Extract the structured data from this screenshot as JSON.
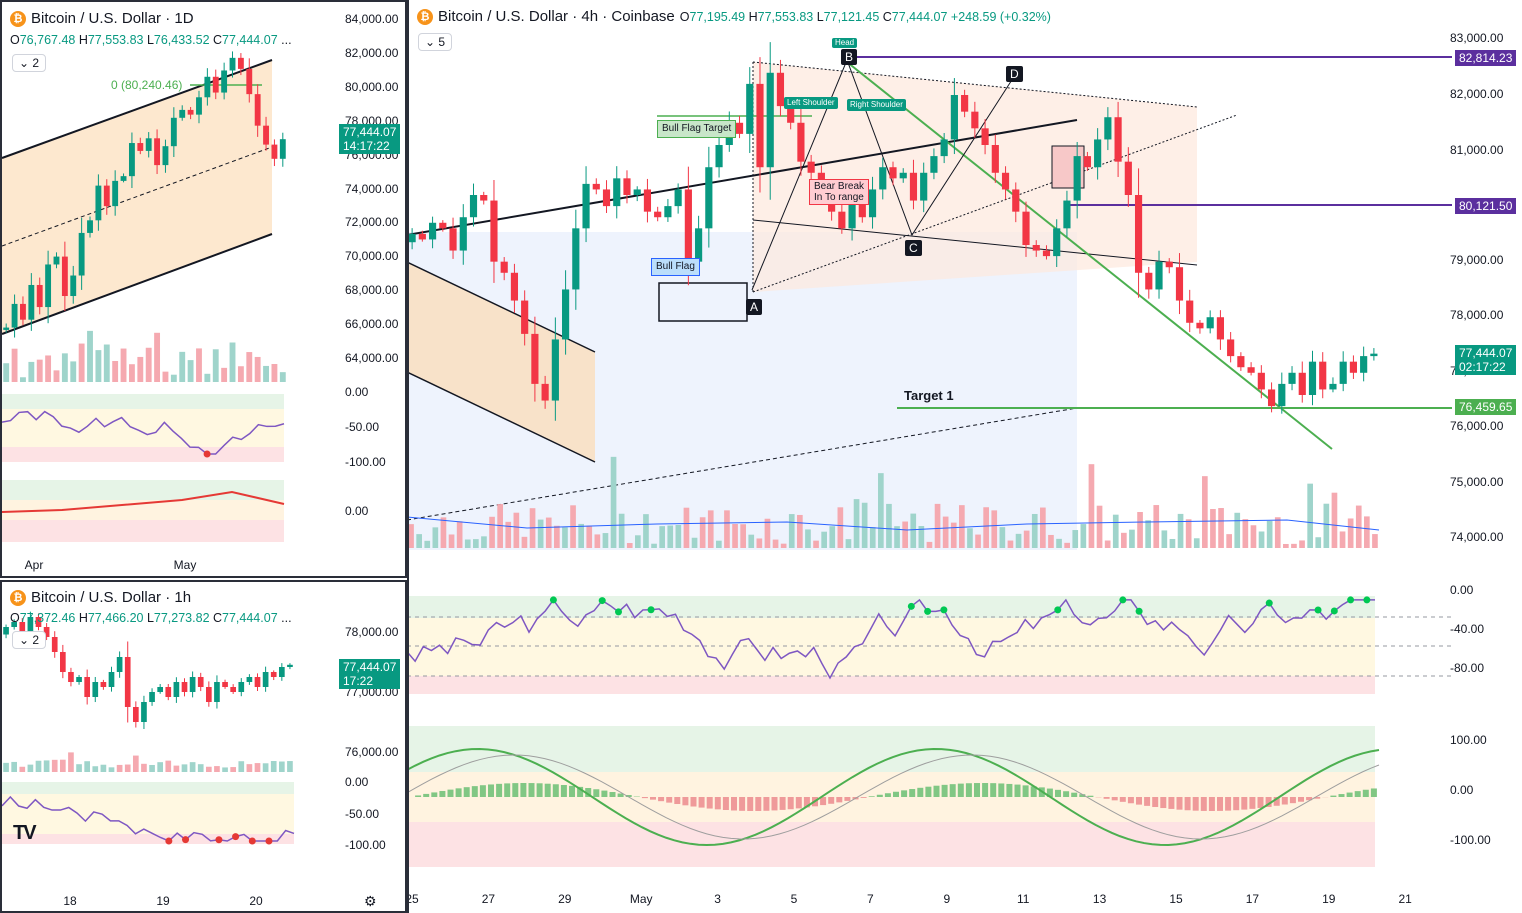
{
  "colors": {
    "up": "#089981",
    "down": "#f23645",
    "purple": "#5b2f9e",
    "green": "#4caf50",
    "rsi": "#7e57c2",
    "orange": "#f7931a"
  },
  "main": {
    "header": {
      "title": "Bitcoin / U.S. Dollar · 4h · Coinbase",
      "o_label": "O",
      "o": "77,195.49",
      "h_label": "H",
      "h": "77,553.83",
      "l_label": "L",
      "l": "77,121.45",
      "c_label": "C",
      "c": "77,444.07",
      "chg": "+248.59 (+0.32%)"
    },
    "chip": "5",
    "price_ticks": [
      "83,000.00",
      "82,000.00",
      "81,000.00",
      "79,000.00",
      "78,000.00",
      "77,000.00",
      "76,000.00",
      "75,000.00",
      "74,000.00"
    ],
    "price_badges": [
      {
        "text": "82,814.23",
        "color": "#5b2f9e"
      },
      {
        "text": "80,121.50",
        "color": "#5b2f9e"
      },
      {
        "text": "76,459.65",
        "color": "#4caf50"
      }
    ],
    "last_price": "77,444.07",
    "countdown": "02:17:22",
    "rsi_ticks": [
      "0.00",
      "-40.00",
      "-80.00"
    ],
    "macd_ticks": [
      "100.00",
      "0.00",
      "-100.00"
    ],
    "x_ticks": [
      "25",
      "27",
      "29",
      "May",
      "3",
      "5",
      "7",
      "9",
      "11",
      "13",
      "15",
      "17",
      "19",
      "21"
    ],
    "annotations": {
      "head": "Head",
      "b": "B",
      "d": "D",
      "c": "C",
      "a": "A",
      "left_shoulder": "Left Shoulder",
      "right_shoulder": "Right Shoulder",
      "bull_flag_target": "Bull Flag Target",
      "bull_flag": "Bull Flag",
      "bear_break": "Bear Break\nIn To range",
      "target1": "Target 1"
    }
  },
  "daily": {
    "header": {
      "title": "Bitcoin / U.S. Dollar · 1D"
    },
    "ohlc": {
      "o_label": "O",
      "o": "76,767.48",
      "h_label": "H",
      "h": "77,553.83",
      "l_label": "L",
      "l": "76,433.52",
      "c_label": "C",
      "c": "77,444.07",
      "more": "..."
    },
    "chip": "2",
    "price_ticks": [
      "84,000.00",
      "82,000.00",
      "80,000.00",
      "78,000.00",
      "76,000.00",
      "74,000.00",
      "72,000.00",
      "70,000.00",
      "68,000.00",
      "66,000.00",
      "64,000.00"
    ],
    "last_price": "77,444.07",
    "countdown": "14:17:22",
    "fib_label": "0 (80,240.46)",
    "rsi_ticks": [
      "0.00",
      "-50.00",
      "-100.00"
    ],
    "macd_ticks": [
      "0.00"
    ],
    "x_ticks": [
      "Apr",
      "May"
    ]
  },
  "hourly": {
    "header": {
      "title": "Bitcoin / U.S. Dollar · 1h"
    },
    "ohlc": {
      "o_label": "O",
      "o": "77,372.46",
      "h_label": "H",
      "h": "77,466.20",
      "l_label": "L",
      "l": "77,273.82",
      "c_label": "C",
      "c": "77,444.07",
      "more": "..."
    },
    "chip": "2",
    "price_ticks": [
      "78,000.00",
      "77,000.00",
      "76,000.00"
    ],
    "last_price": "77,444.07",
    "countdown": "17:22",
    "rsi_ticks": [
      "0.00",
      "-50.00",
      "-100.00"
    ],
    "x_ticks": [
      "18",
      "19",
      "20"
    ],
    "logo": "TV"
  },
  "chart_data": [
    {
      "type": "candlestick",
      "title": "Bitcoin / U.S. Dollar · 4h · Coinbase",
      "x_ticks": [
        "25",
        "27",
        "29",
        "May",
        "3",
        "5",
        "7",
        "9",
        "11",
        "13",
        "15",
        "17",
        "19",
        "21"
      ],
      "ylim": [
        74000,
        83000
      ],
      "close": [
        79600,
        79500,
        79800,
        79700,
        79300,
        79900,
        80300,
        80200,
        79100,
        78900,
        78400,
        77800,
        76900,
        76600,
        77700,
        78600,
        79700,
        80500,
        80400,
        80100,
        80600,
        80300,
        80400,
        80000,
        79900,
        80100,
        80400,
        79100,
        79700,
        80800,
        81200,
        81600,
        81400,
        82300,
        80800,
        82500,
        81900,
        81600,
        80900,
        80700,
        80400,
        80000,
        79700,
        80200,
        79900,
        80400,
        80800,
        80600,
        80700,
        80200,
        80700,
        81000,
        81300,
        82100,
        81800,
        81500,
        81200,
        80700,
        80400,
        80000,
        79400,
        79300,
        79200,
        79700,
        80200,
        81000,
        80800,
        81300,
        81700,
        80900,
        80300,
        78900,
        78600,
        79100,
        79000,
        78400,
        78000,
        77900,
        78100,
        77700,
        77400,
        77200,
        77100,
        76800,
        76500,
        76900,
        77100,
        76700,
        77300,
        76800,
        76900,
        77300,
        77100,
        77400,
        77444
      ],
      "levels": {
        "purple_top": 82814.23,
        "purple_mid": 80121.5,
        "green_target": 76459.65
      },
      "rsi": {
        "ylim": [
          -100,
          0
        ],
        "ticks": [
          0,
          -40,
          -80
        ]
      },
      "macd": {
        "ticks": [
          100,
          0,
          -100
        ]
      }
    },
    {
      "type": "candlestick",
      "title": "Bitcoin / U.S. Dollar · 1D",
      "ylim": [
        63000,
        85000
      ],
      "close": [
        65500,
        67000,
        66000,
        68200,
        66800,
        69500,
        70000,
        67500,
        68800,
        71500,
        72300,
        74500,
        73200,
        74800,
        75100,
        77200,
        76700,
        77500,
        75800,
        77000,
        78800,
        79300,
        79000,
        80100,
        81400,
        80400,
        81800,
        82600,
        81900,
        80300,
        78300,
        77100,
        76200,
        77444
      ],
      "levels": {
        "fib_0": 80240.46
      }
    },
    {
      "type": "candlestick",
      "title": "Bitcoin / U.S. Dollar · 1h",
      "ylim": [
        75500,
        78600
      ],
      "close": [
        78200,
        78300,
        78100,
        78400,
        78200,
        78000,
        77700,
        77300,
        77100,
        77200,
        76800,
        77100,
        77000,
        77300,
        77600,
        76600,
        76300,
        76700,
        76900,
        77000,
        76800,
        77100,
        76900,
        77200,
        77000,
        76700,
        77100,
        77000,
        76900,
        77100,
        77200,
        77000,
        77300,
        77200,
        77400,
        77444
      ]
    }
  ]
}
